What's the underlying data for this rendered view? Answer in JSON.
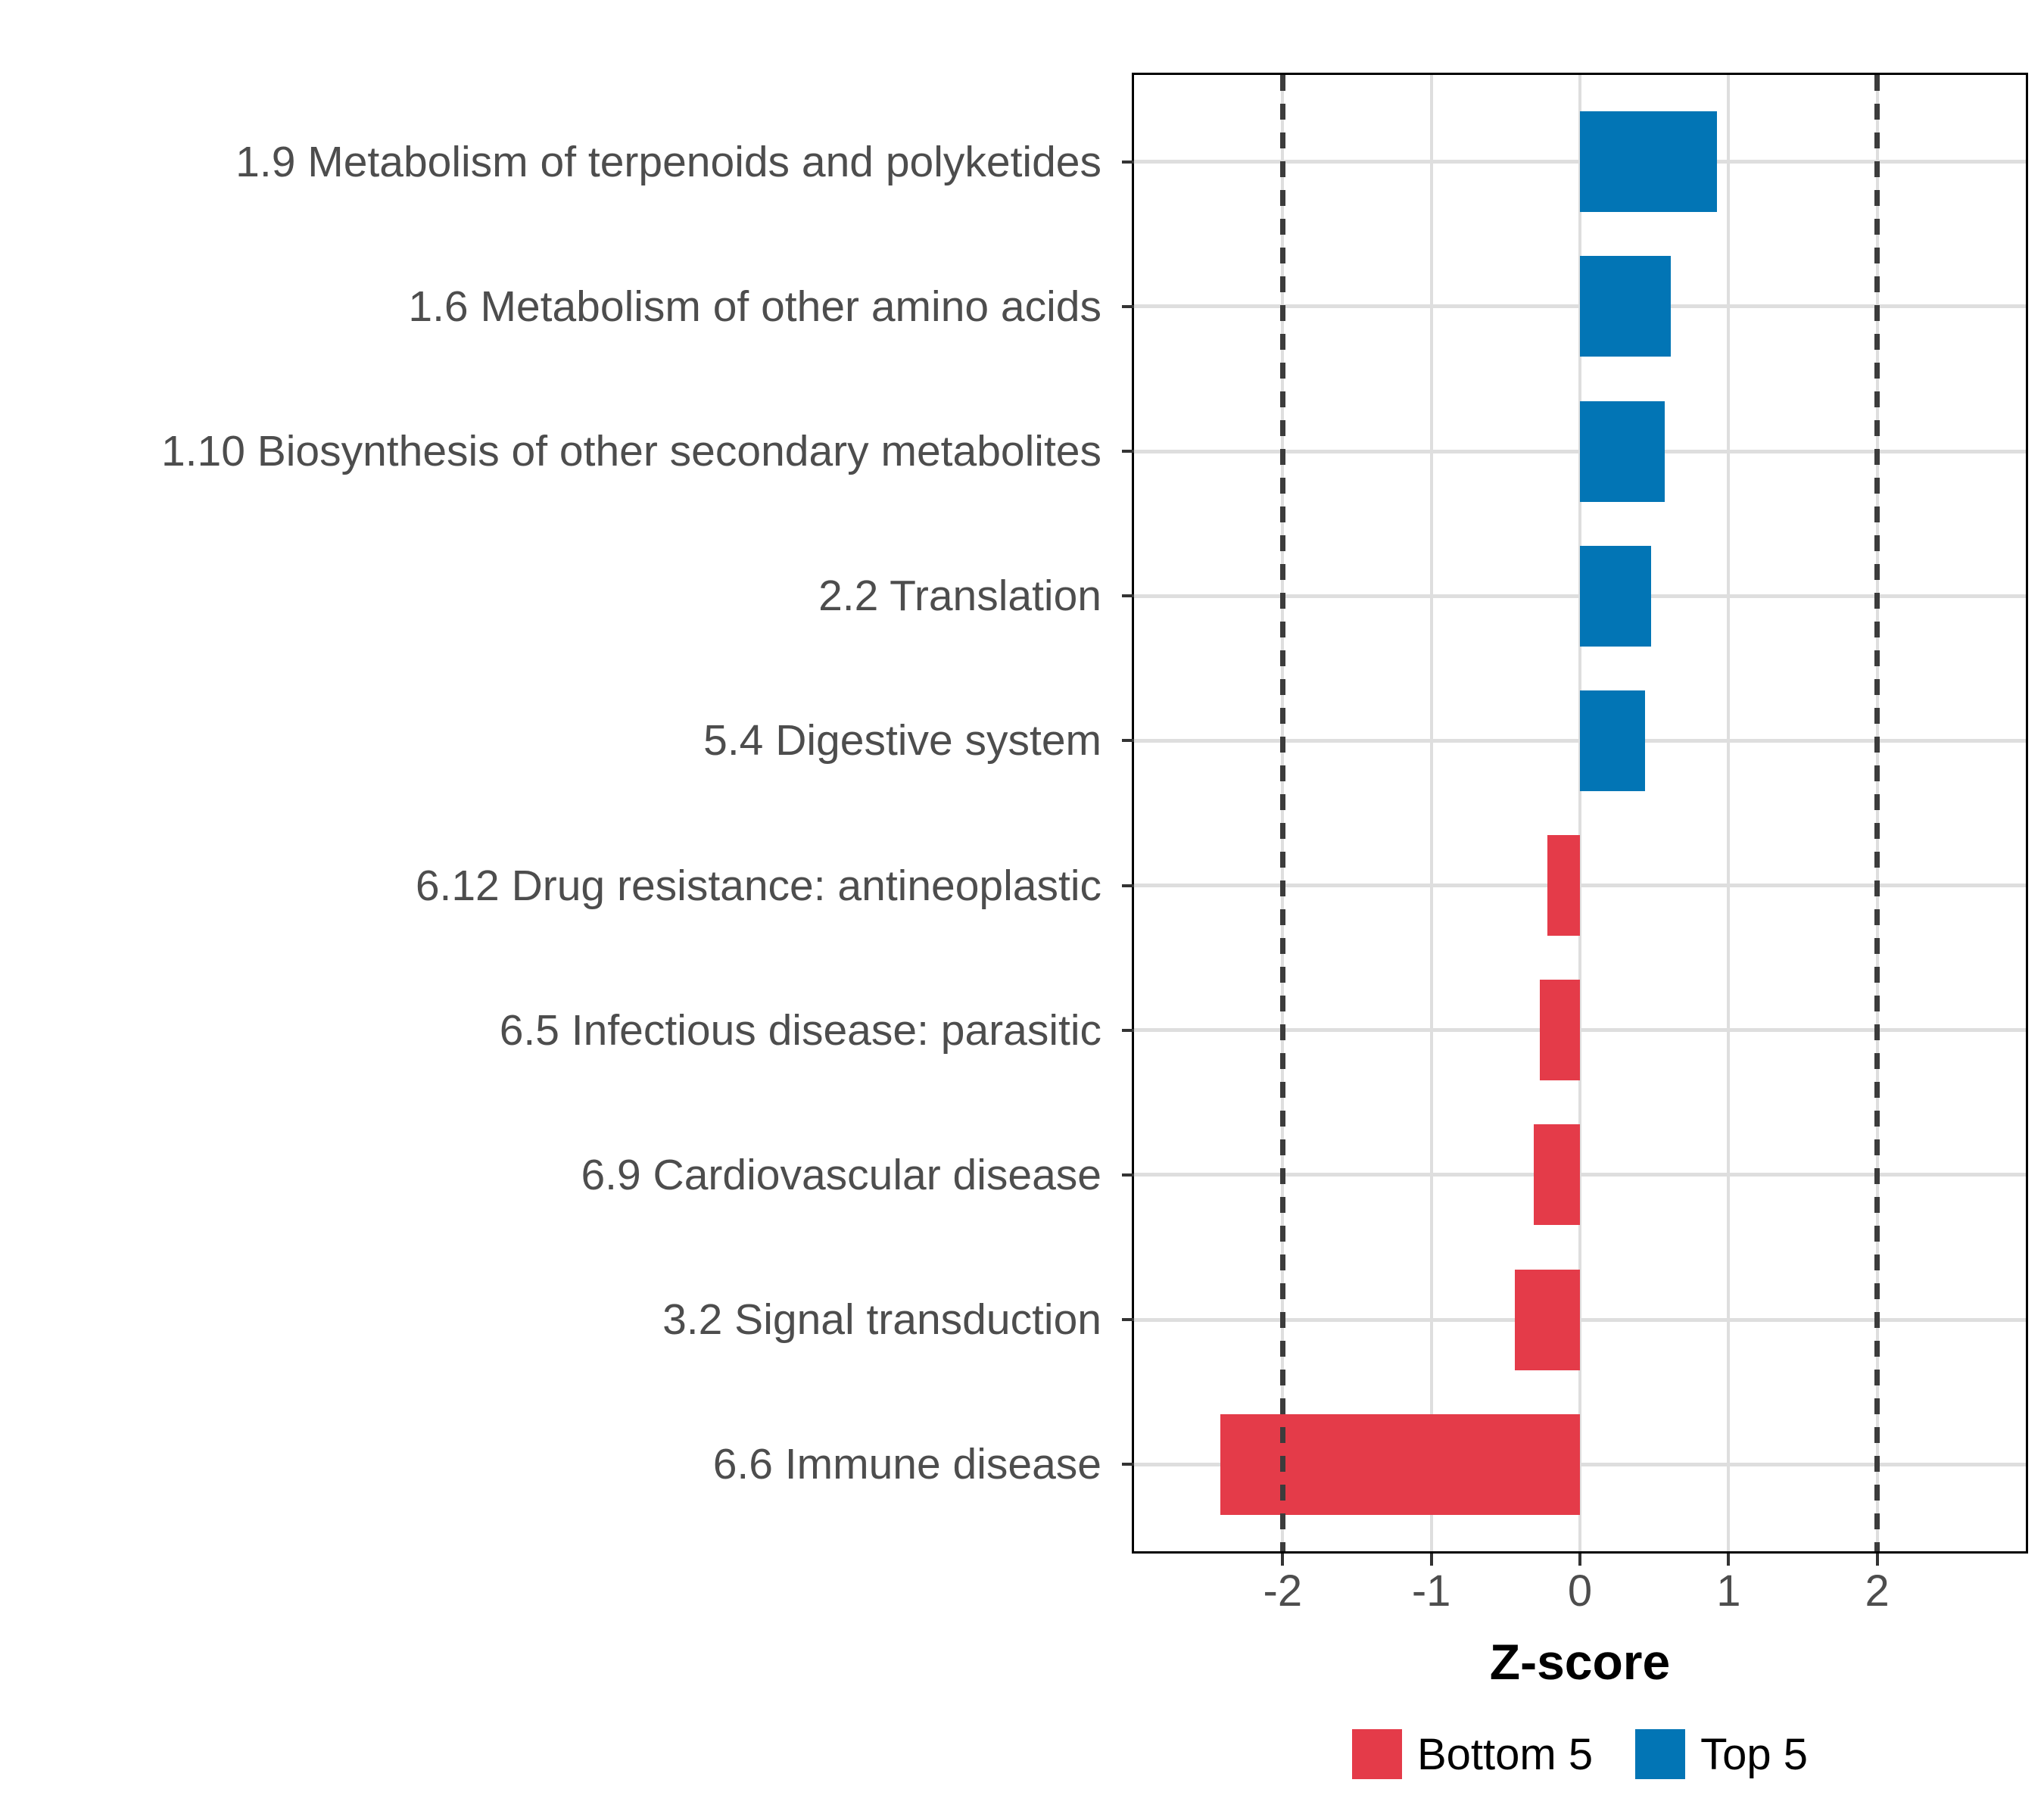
{
  "chart_data": {
    "type": "bar",
    "orientation": "horizontal",
    "title": "",
    "xlabel": "Z-score",
    "categories": [
      "1.9 Metabolism of terpenoids and polyketides",
      "1.6 Metabolism of other amino acids",
      "1.10 Biosynthesis of other secondary metabolites",
      "2.2 Translation",
      "5.4 Digestive system",
      "6.12 Drug resistance: antineoplastic",
      "6.5 Infectious disease: parasitic",
      "6.9 Cardiovascular disease",
      "3.2 Signal transduction",
      "6.6 Immune disease"
    ],
    "values": [
      0.92,
      0.61,
      0.57,
      0.48,
      0.44,
      -0.22,
      -0.27,
      -0.31,
      -0.44,
      -2.42
    ],
    "groups": [
      "Top 5",
      "Top 5",
      "Top 5",
      "Top 5",
      "Top 5",
      "Bottom 5",
      "Bottom 5",
      "Bottom 5",
      "Bottom 5",
      "Bottom 5"
    ],
    "xlim": [
      -3,
      3
    ],
    "xticks": [
      "-2",
      "-1",
      "0",
      "1",
      "2"
    ],
    "xtick_values": [
      -2,
      -1,
      0,
      1,
      2
    ],
    "reference_lines": [
      -2,
      2
    ],
    "grid": true,
    "legend_position": "bottom",
    "colors": {
      "Top 5": "#0275B5",
      "Bottom 5": "#E43B49",
      "reference_line": "#3C3C3C",
      "gridline": "#DEDEDE",
      "axis_text": "#4D4D4D",
      "panel_border": "#000000"
    },
    "legend": [
      {
        "label": "Bottom 5",
        "color": "#E43B49"
      },
      {
        "label": "Top 5",
        "color": "#0275B5"
      }
    ]
  }
}
